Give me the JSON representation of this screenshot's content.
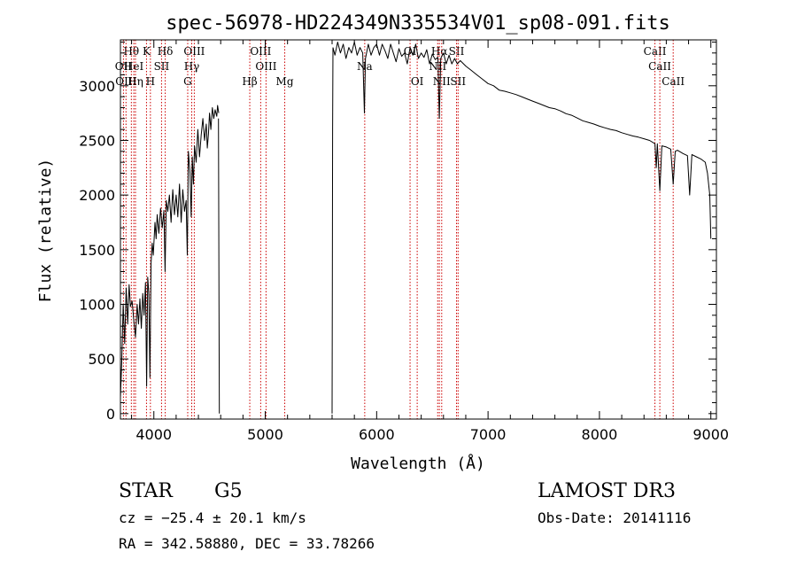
{
  "chart_data": {
    "type": "line",
    "title": "spec-56978-HD224349N335534V01_sp08-091.fits",
    "xlabel": "Wavelength (Å)",
    "ylabel": "Flux (relative)",
    "xlim": [
      3700,
      9050
    ],
    "ylim": [
      -50,
      3420
    ],
    "x_ticks": [
      4000,
      5000,
      6000,
      7000,
      8000,
      9000
    ],
    "y_ticks": [
      0,
      500,
      1000,
      1500,
      2000,
      2500,
      3000
    ],
    "grid": false,
    "line_color": "#000000",
    "marker_color": "#cc0000",
    "series": [
      {
        "name": "flux",
        "segments": [
          [
            [
              3700,
              150
            ],
            [
              3712,
              480
            ],
            [
              3725,
              1000
            ],
            [
              3738,
              640
            ],
            [
              3752,
              1150
            ],
            [
              3765,
              820
            ],
            [
              3778,
              1180
            ],
            [
              3790,
              980
            ],
            [
              3805,
              1030
            ],
            [
              3820,
              850
            ],
            [
              3835,
              700
            ],
            [
              3850,
              1000
            ],
            [
              3862,
              820
            ],
            [
              3875,
              1050
            ],
            [
              3888,
              780
            ],
            [
              3900,
              1100
            ],
            [
              3912,
              900
            ],
            [
              3925,
              1200
            ],
            [
              3935,
              250
            ],
            [
              3945,
              1250
            ],
            [
              3955,
              1100
            ],
            [
              3965,
              330
            ],
            [
              3975,
              1380
            ],
            [
              3985,
              1560
            ],
            [
              3995,
              1450
            ],
            [
              4010,
              1750
            ],
            [
              4020,
              1600
            ],
            [
              4030,
              1820
            ],
            [
              4045,
              1650
            ],
            [
              4060,
              1880
            ],
            [
              4075,
              1700
            ],
            [
              4090,
              1860
            ],
            [
              4101,
              1300
            ],
            [
              4112,
              1950
            ],
            [
              4125,
              1850
            ],
            [
              4140,
              2000
            ],
            [
              4155,
              1750
            ],
            [
              4170,
              2050
            ],
            [
              4185,
              1820
            ],
            [
              4200,
              2000
            ],
            [
              4215,
              1800
            ],
            [
              4230,
              2100
            ],
            [
              4245,
              1750
            ],
            [
              4260,
              2050
            ],
            [
              4275,
              1850
            ],
            [
              4290,
              1950
            ],
            [
              4300,
              1450
            ],
            [
              4310,
              2400
            ],
            [
              4325,
              2200
            ],
            [
              4335,
              1800
            ],
            [
              4345,
              2350
            ],
            [
              4355,
              2100
            ],
            [
              4365,
              2450
            ],
            [
              4380,
              2300
            ],
            [
              4395,
              2600
            ],
            [
              4410,
              2350
            ],
            [
              4425,
              2550
            ],
            [
              4440,
              2700
            ],
            [
              4455,
              2500
            ],
            [
              4470,
              2650
            ],
            [
              4480,
              2430
            ],
            [
              4490,
              2560
            ],
            [
              4500,
              2750
            ],
            [
              4512,
              2600
            ],
            [
              4525,
              2800
            ],
            [
              4538,
              2700
            ],
            [
              4550,
              2780
            ],
            [
              4565,
              2720
            ],
            [
              4572,
              2820
            ],
            [
              4582,
              2750
            ]
          ],
          [
            [
              4580,
              2700
            ],
            [
              4585,
              1000
            ],
            [
              4588,
              0
            ]
          ],
          [
            [
              5600,
              0
            ],
            [
              5602,
              1200
            ],
            [
              5605,
              2600
            ],
            [
              5608,
              3350
            ]
          ],
          [
            [
              5608,
              3350
            ],
            [
              5625,
              3280
            ],
            [
              5650,
              3400
            ],
            [
              5675,
              3300
            ],
            [
              5700,
              3380
            ],
            [
              5725,
              3250
            ],
            [
              5750,
              3350
            ],
            [
              5775,
              3300
            ],
            [
              5800,
              3400
            ],
            [
              5825,
              3280
            ],
            [
              5850,
              3350
            ],
            [
              5875,
              3300
            ],
            [
              5890,
              2750
            ],
            [
              5900,
              3250
            ],
            [
              5925,
              3380
            ],
            [
              5950,
              3280
            ],
            [
              5975,
              3350
            ],
            [
              6000,
              3380
            ],
            [
              6025,
              3280
            ],
            [
              6050,
              3380
            ],
            [
              6075,
              3320
            ],
            [
              6100,
              3250
            ],
            [
              6125,
              3380
            ],
            [
              6150,
              3300
            ],
            [
              6175,
              3220
            ],
            [
              6200,
              3340
            ],
            [
              6225,
              3270
            ],
            [
              6250,
              3300
            ],
            [
              6275,
              3200
            ],
            [
              6300,
              3350
            ],
            [
              6325,
              3280
            ],
            [
              6350,
              3380
            ],
            [
              6375,
              3250
            ],
            [
              6400,
              3300
            ],
            [
              6425,
              3260
            ],
            [
              6450,
              3330
            ],
            [
              6475,
              3200
            ],
            [
              6500,
              3290
            ],
            [
              6525,
              3240
            ],
            [
              6550,
              3260
            ],
            [
              6563,
              2700
            ],
            [
              6575,
              3250
            ],
            [
              6600,
              3300
            ],
            [
              6625,
              3200
            ],
            [
              6650,
              3280
            ],
            [
              6675,
              3200
            ],
            [
              6700,
              3250
            ],
            [
              6725,
              3200
            ],
            [
              6750,
              3230
            ],
            [
              6800,
              3180
            ],
            [
              6850,
              3140
            ],
            [
              6900,
              3100
            ],
            [
              6950,
              3060
            ],
            [
              7000,
              3020
            ],
            [
              7050,
              3000
            ],
            [
              7100,
              2960
            ],
            [
              7150,
              2950
            ],
            [
              7200,
              2935
            ],
            [
              7250,
              2920
            ],
            [
              7300,
              2900
            ],
            [
              7350,
              2880
            ],
            [
              7400,
              2860
            ],
            [
              7450,
              2840
            ],
            [
              7500,
              2820
            ],
            [
              7550,
              2800
            ],
            [
              7600,
              2790
            ],
            [
              7650,
              2770
            ],
            [
              7700,
              2745
            ],
            [
              7750,
              2730
            ],
            [
              7800,
              2705
            ],
            [
              7850,
              2680
            ],
            [
              7900,
              2665
            ],
            [
              7950,
              2650
            ],
            [
              8000,
              2630
            ],
            [
              8050,
              2615
            ],
            [
              8100,
              2600
            ],
            [
              8150,
              2590
            ],
            [
              8200,
              2570
            ],
            [
              8250,
              2555
            ],
            [
              8300,
              2540
            ],
            [
              8350,
              2530
            ],
            [
              8400,
              2515
            ],
            [
              8450,
              2500
            ],
            [
              8498,
              2470
            ],
            [
              8510,
              2250
            ],
            [
              8520,
              2470
            ],
            [
              8542,
              2040
            ],
            [
              8560,
              2450
            ],
            [
              8600,
              2440
            ],
            [
              8640,
              2420
            ],
            [
              8662,
              2100
            ],
            [
              8680,
              2400
            ],
            [
              8700,
              2410
            ],
            [
              8750,
              2380
            ],
            [
              8790,
              2360
            ],
            [
              8810,
              2000
            ],
            [
              8830,
              2370
            ],
            [
              8870,
              2350
            ],
            [
              8910,
              2330
            ],
            [
              8950,
              2300
            ],
            [
              8970,
              2200
            ],
            [
              8990,
              2000
            ],
            [
              9000,
              1600
            ]
          ]
        ]
      }
    ],
    "lines": [
      {
        "label": "Hθ",
        "wavelength": 3798,
        "row": 1
      },
      {
        "label": "OII",
        "wavelength": 3727,
        "row": 2
      },
      {
        "label": "OIII",
        "wavelength": 3750,
        "row": 3
      },
      {
        "label": "HeI",
        "wavelength": 3820,
        "row": 2
      },
      {
        "label": "Hη",
        "wavelength": 3835,
        "row": 3
      },
      {
        "label": "K",
        "wavelength": 3934,
        "row": 1
      },
      {
        "label": "SII",
        "wavelength": 4069,
        "row": 2
      },
      {
        "label": "H",
        "wavelength": 3969,
        "row": 3
      },
      {
        "label": "Hδ",
        "wavelength": 4102,
        "row": 1
      },
      {
        "label": "OIII",
        "wavelength": 4363,
        "row": 1
      },
      {
        "label": "Hγ",
        "wavelength": 4340,
        "row": 2
      },
      {
        "label": "G",
        "wavelength": 4304,
        "row": 3
      },
      {
        "label": "Hβ",
        "wavelength": 4861,
        "row": 3
      },
      {
        "label": "OIII",
        "wavelength": 4959,
        "row": 1
      },
      {
        "label": "OIII",
        "wavelength": 5007,
        "row": 2
      },
      {
        "label": "Mg",
        "wavelength": 5175,
        "row": 3
      },
      {
        "label": "Na",
        "wavelength": 5893,
        "row": 2
      },
      {
        "label": "OI",
        "wavelength": 6300,
        "row": 1
      },
      {
        "label": "OI",
        "wavelength": 6364,
        "row": 3
      },
      {
        "label": "Hα",
        "wavelength": 6563,
        "row": 1
      },
      {
        "label": "NII",
        "wavelength": 6548,
        "row": 2
      },
      {
        "label": "NII",
        "wavelength": 6584,
        "row": 3
      },
      {
        "label": "SII",
        "wavelength": 6717,
        "row": 1
      },
      {
        "label": "SII",
        "wavelength": 6731,
        "row": 3
      },
      {
        "label": "CaII",
        "wavelength": 8498,
        "row": 1
      },
      {
        "label": "CaII",
        "wavelength": 8542,
        "row": 2
      },
      {
        "label": "CaII",
        "wavelength": 8662,
        "row": 3
      }
    ]
  },
  "info": {
    "object_class": "STAR",
    "subclass": "G5",
    "survey": "LAMOST DR3",
    "cz": "cz = −25.4 ± 20.1 km/s",
    "obs_date": "Obs-Date: 20141116",
    "coords": "RA = 342.58880, DEC =  33.78266"
  }
}
